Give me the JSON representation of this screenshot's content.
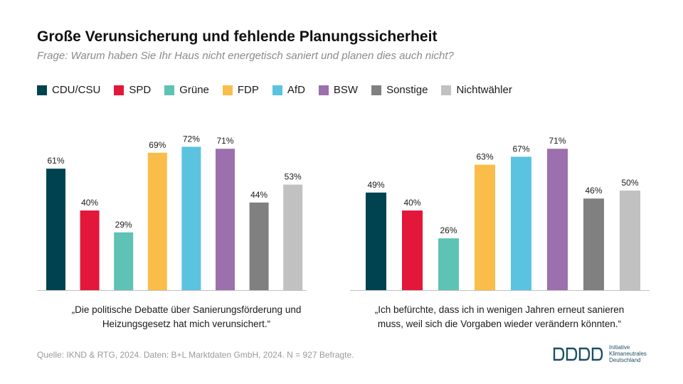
{
  "title": "Große Verunsicherung und fehlende Planungssicherheit",
  "subtitle": "Frage: Warum haben Sie Ihr Haus nicht energetisch saniert und planen dies auch nicht?",
  "legend": [
    {
      "label": "CDU/CSU",
      "color": "#004350"
    },
    {
      "label": "SPD",
      "color": "#e3173a"
    },
    {
      "label": "Grüne",
      "color": "#5ec2b4"
    },
    {
      "label": "FDP",
      "color": "#fbbd4a"
    },
    {
      "label": "AfD",
      "color": "#5bc3e0"
    },
    {
      "label": "BSW",
      "color": "#9c6fad"
    },
    {
      "label": "Sonstige",
      "color": "#808080"
    },
    {
      "label": "Nichtwähler",
      "color": "#c1c1c1"
    }
  ],
  "chart_data": [
    {
      "type": "bar",
      "categories": [
        "CDU/CSU",
        "SPD",
        "Grüne",
        "FDP",
        "AfD",
        "BSW",
        "Sonstige",
        "Nichtwähler"
      ],
      "values": [
        61,
        40,
        29,
        69,
        72,
        71,
        44,
        53
      ],
      "value_labels": [
        "61%",
        "40%",
        "29%",
        "69%",
        "72%",
        "71%",
        "44%",
        "53%"
      ],
      "unit": "%",
      "caption_lines": [
        "„Die politische Debatte über Sanierungsförderung und",
        "Heizungsgesetz hat mich verunsichert.“"
      ],
      "ylim": [
        0,
        100
      ]
    },
    {
      "type": "bar",
      "categories": [
        "CDU/CSU",
        "SPD",
        "Grüne",
        "FDP",
        "AfD",
        "BSW",
        "Sonstige",
        "Nichtwähler"
      ],
      "values": [
        49,
        40,
        26,
        63,
        67,
        71,
        46,
        50
      ],
      "value_labels": [
        "49%",
        "40%",
        "26%",
        "63%",
        "67%",
        "71%",
        "46%",
        "50%"
      ],
      "unit": "%",
      "caption_lines": [
        "„Ich befürchte, dass ich in wenigen Jahren erneut sanieren",
        "muss, weil sich die Vorgaben wieder verändern könnten.“"
      ],
      "ylim": [
        0,
        100
      ]
    }
  ],
  "source": "Quelle: IKND & RTG, 2024. Daten: B+L  Marktdaten GmbH, 2024. N = 927 Befragte.",
  "logo": {
    "mark": "DDDD",
    "lines": [
      "Initiative",
      "Klimaneutrales",
      "Deutschland"
    ]
  }
}
